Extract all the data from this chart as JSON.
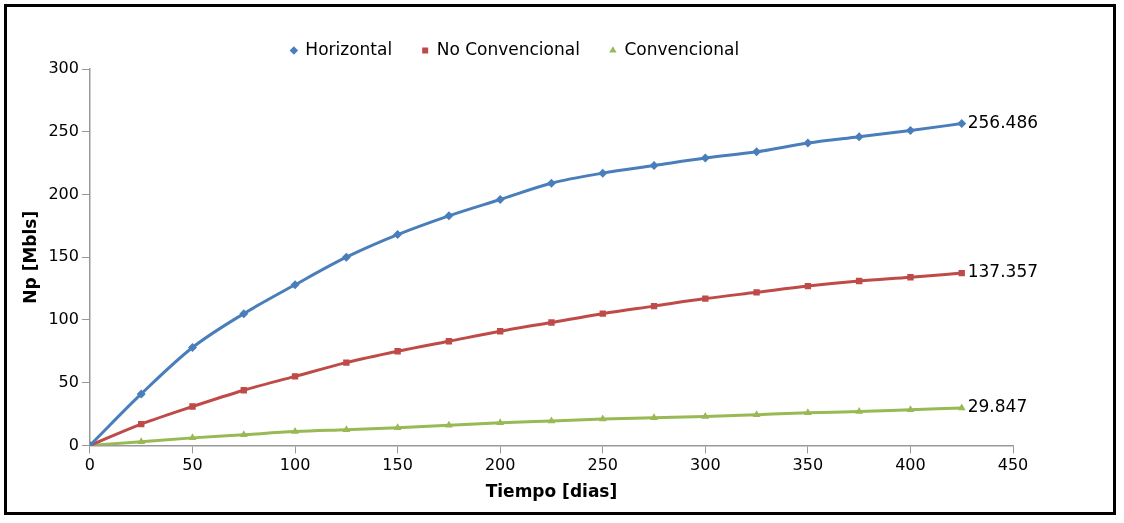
{
  "chart_data": {
    "type": "line",
    "xlabel": "Tiempo [dias]",
    "ylabel": "Np [Mbls]",
    "x": [
      0,
      25,
      50,
      75,
      100,
      125,
      150,
      175,
      200,
      225,
      250,
      275,
      300,
      325,
      350,
      375,
      400,
      425
    ],
    "xlim": [
      0,
      450
    ],
    "xticks": [
      0,
      50,
      100,
      150,
      200,
      250,
      300,
      350,
      400,
      450
    ],
    "ylim": [
      0,
      300
    ],
    "yticks": [
      0,
      50,
      100,
      150,
      200,
      250,
      300
    ],
    "grid": false,
    "legend": "top",
    "series": [
      {
        "name": "Horizontal",
        "color": "#4a7ebb",
        "marker": "diamond",
        "values": [
          0,
          41,
          78,
          105,
          128,
          150,
          168,
          183,
          196,
          209,
          217,
          223,
          229,
          234,
          241,
          246,
          251,
          256.486
        ],
        "value_labels": [
          null,
          null,
          null,
          null,
          null,
          null,
          null,
          null,
          null,
          null,
          null,
          null,
          null,
          null,
          null,
          null,
          null,
          "256.486"
        ]
      },
      {
        "name": "No Convencional",
        "color": "#be4b48",
        "marker": "square",
        "values": [
          0,
          17,
          31,
          44,
          55,
          66,
          75,
          83,
          91,
          98,
          105,
          111,
          117,
          122,
          127,
          131,
          134,
          137.357
        ],
        "value_labels": [
          null,
          null,
          null,
          null,
          null,
          null,
          null,
          null,
          null,
          null,
          null,
          null,
          null,
          null,
          null,
          null,
          null,
          "137.357"
        ]
      },
      {
        "name": "Convencional",
        "color": "#98b954",
        "marker": "triangle",
        "values": [
          0,
          3,
          6,
          8.5,
          11,
          12.5,
          14,
          16,
          18,
          19.5,
          21,
          22,
          23,
          24.5,
          26,
          27,
          28.5,
          29.847
        ],
        "value_labels": [
          null,
          null,
          null,
          null,
          null,
          null,
          null,
          null,
          null,
          null,
          null,
          null,
          null,
          null,
          null,
          null,
          null,
          "29.847"
        ]
      }
    ]
  }
}
